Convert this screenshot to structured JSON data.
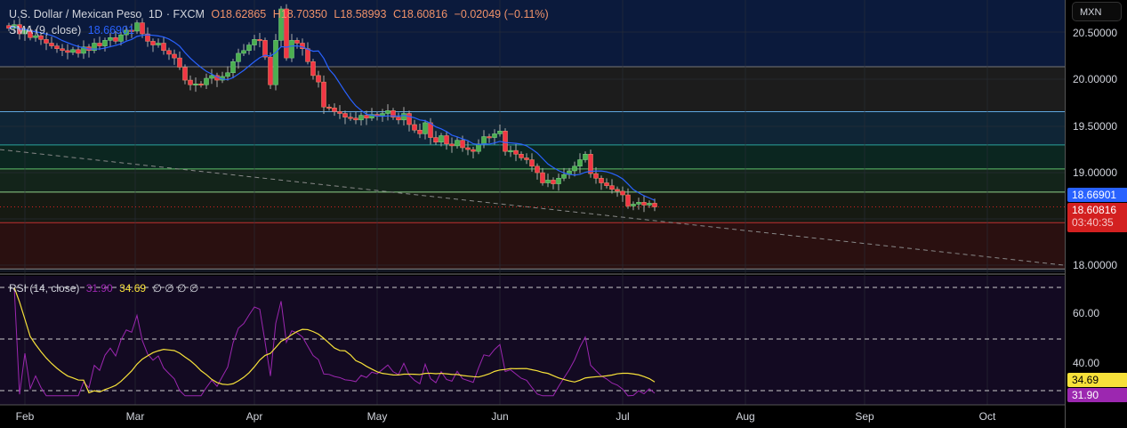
{
  "header": {
    "symbol": "U.S. Dollar / Mexican Peso",
    "interval": "1D",
    "exchange": "FXCM",
    "open": "O18.62865",
    "high": "H18.70350",
    "low": "L18.58993",
    "close": "C18.60816",
    "change": "−0.02049 (−0.11%)",
    "sma_label": "SMA (9, close)",
    "sma_value": "18.66901"
  },
  "rsi_legend": {
    "label": "RSI (14, close)",
    "rsi_value": "31.90",
    "rsi_ma_value": "34.69",
    "extra": "∅ ∅ ∅ ∅"
  },
  "axis": {
    "currency": "MXN",
    "price_ticks": [
      "20.50000",
      "20.00000",
      "19.50000",
      "19.00000",
      "18.00000"
    ],
    "rsi_ticks": [
      "60.00",
      "40.00"
    ],
    "sma_tag": "18.66901",
    "price_tag": "18.60816",
    "countdown": "03:40:35",
    "rsi_ma_tag": "34.69",
    "rsi_tag": "31.90"
  },
  "months": [
    "Feb",
    "Mar",
    "Apr",
    "May",
    "Jun",
    "Jul",
    "Aug",
    "Sep",
    "Oct"
  ],
  "colors": {
    "up": "#4caf50",
    "down": "#f23645",
    "sma": "#2962ff",
    "rsi": "#9c27b0",
    "rsi_ma": "#f7e13a",
    "sma_tag": "#2962ff",
    "price_tag": "#f23645"
  },
  "chart_data": {
    "type": "candlestick",
    "title": "U.S. Dollar / Mexican Peso",
    "x_ticks": [
      "Feb",
      "Mar",
      "Apr",
      "May",
      "Jun",
      "Jul",
      "Aug",
      "Sep",
      "Oct"
    ],
    "ylim": [
      17.95,
      20.85
    ],
    "closes": [
      20.54,
      20.58,
      20.48,
      20.52,
      20.44,
      20.46,
      20.42,
      20.38,
      20.35,
      20.32,
      20.3,
      20.28,
      20.31,
      20.27,
      20.34,
      20.3,
      20.38,
      20.35,
      20.41,
      20.44,
      20.4,
      20.47,
      20.52,
      20.51,
      20.6,
      20.48,
      20.4,
      20.36,
      20.38,
      20.3,
      20.26,
      20.22,
      20.12,
      19.98,
      19.93,
      19.94,
      19.93,
      20.0,
      20.03,
      19.98,
      20.02,
      20.06,
      20.18,
      20.27,
      20.3,
      20.36,
      20.42,
      20.41,
      20.23,
      19.93,
      20.41,
      20.75,
      20.22,
      20.41,
      20.38,
      20.32,
      20.18,
      20.03,
      19.96,
      19.69,
      19.68,
      19.64,
      19.62,
      19.58,
      19.57,
      19.55,
      19.6,
      19.57,
      19.61,
      19.59,
      19.62,
      19.65,
      19.58,
      19.55,
      19.62,
      19.5,
      19.44,
      19.4,
      19.52,
      19.36,
      19.31,
      19.38,
      19.29,
      19.27,
      19.33,
      19.25,
      19.23,
      19.21,
      19.29,
      19.37,
      19.36,
      19.4,
      19.43,
      19.21,
      19.22,
      19.18,
      19.14,
      19.12,
      19.05,
      18.98,
      18.87,
      18.9,
      18.86,
      18.92,
      18.96,
      19.0,
      19.05,
      19.12,
      19.18,
      18.97,
      18.92,
      18.87,
      18.84,
      18.8,
      18.78,
      18.74,
      18.62,
      18.64,
      18.66,
      18.63,
      18.65,
      18.61
    ],
    "indicators": {
      "sma_period": 9,
      "rsi_period": 14,
      "rsi_ma_period": 14
    },
    "zone_levels": [
      20.125,
      19.64,
      19.28,
      19.02,
      18.77,
      18.44,
      17.94
    ],
    "trendline": {
      "start_price": 19.23,
      "end_price": 17.98
    },
    "rsi_levels": [
      70,
      50,
      30
    ],
    "rsi_ylim": [
      25,
      72
    ]
  }
}
